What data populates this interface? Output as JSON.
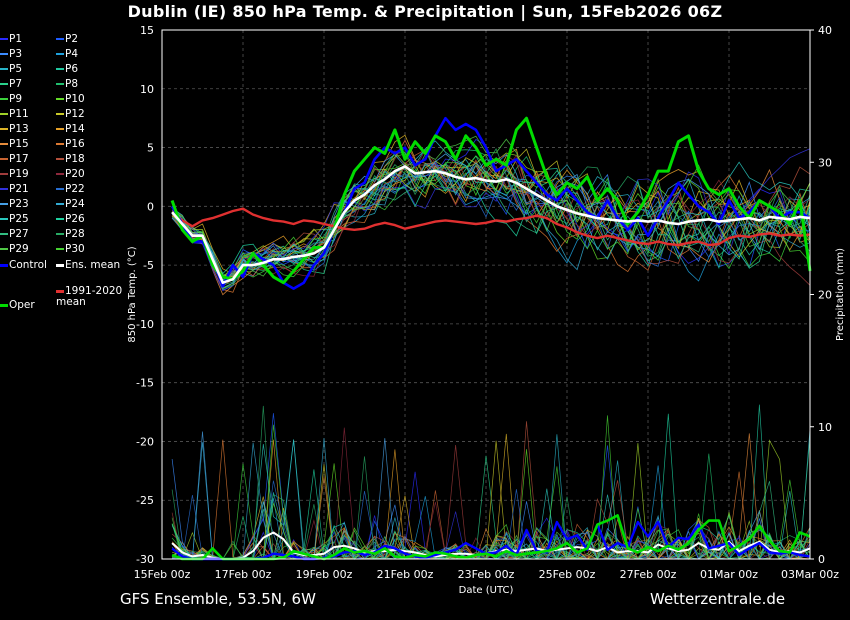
{
  "title": "Dublin  (IE)  850 hPa Temp. & Precipitation | Sun, 15Feb2026 06Z",
  "footer": {
    "model": "GFS Ensemble, 53.5N, 6W",
    "source": "Wetterzentrale.de"
  },
  "legend": {
    "members": [
      {
        "label": "P1",
        "color": "#2a2aff"
      },
      {
        "label": "P2",
        "color": "#1e5cff"
      },
      {
        "label": "P3",
        "color": "#3c8cff"
      },
      {
        "label": "P4",
        "color": "#1ea0dc"
      },
      {
        "label": "P5",
        "color": "#28b4c8"
      },
      {
        "label": "P6",
        "color": "#20c8a0"
      },
      {
        "label": "P7",
        "color": "#2ad28c"
      },
      {
        "label": "P8",
        "color": "#20be6e"
      },
      {
        "label": "P9",
        "color": "#3cd23c"
      },
      {
        "label": "P10",
        "color": "#64dc28"
      },
      {
        "label": "P11",
        "color": "#a0d228"
      },
      {
        "label": "P12",
        "color": "#c8c828"
      },
      {
        "label": "P13",
        "color": "#dcb428"
      },
      {
        "label": "P14",
        "color": "#e6a028"
      },
      {
        "label": "P15",
        "color": "#e68c3c"
      },
      {
        "label": "P16",
        "color": "#dc7832"
      },
      {
        "label": "P17",
        "color": "#c86432"
      },
      {
        "label": "P18",
        "color": "#b4503c"
      },
      {
        "label": "P19",
        "color": "#a03c3c"
      },
      {
        "label": "P20",
        "color": "#8c283c"
      },
      {
        "label": "P21",
        "color": "#3232dc"
      },
      {
        "label": "P22",
        "color": "#286ed2"
      },
      {
        "label": "P23",
        "color": "#46a0e6"
      },
      {
        "label": "P24",
        "color": "#32aad2"
      },
      {
        "label": "P25",
        "color": "#2ac8be"
      },
      {
        "label": "P26",
        "color": "#1ed2a0"
      },
      {
        "label": "P27",
        "color": "#32be82"
      },
      {
        "label": "P28",
        "color": "#28aa64"
      },
      {
        "label": "P29",
        "color": "#50c846"
      },
      {
        "label": "P30",
        "color": "#46d232"
      }
    ],
    "control": {
      "label": "Control",
      "color": "#0000ff"
    },
    "ens_mean": {
      "label": "Ens. mean",
      "color": "#ffffff"
    },
    "climate": {
      "label": "1991-2020 mean",
      "color": "#e03030"
    },
    "oper": {
      "label": "Oper",
      "color": "#00dc00"
    }
  },
  "chart_data": {
    "type": "line",
    "xlabel": "Date (UTC)",
    "ylabel": "850 hPa Temp. (°C)",
    "y2label": "Precipitation (mm)",
    "ylim": [
      -30,
      15
    ],
    "y2lim": [
      0,
      40
    ],
    "yticks": [
      15,
      10,
      5,
      0,
      -5,
      -10,
      -15,
      -20,
      -25,
      -30
    ],
    "y2ticks": [
      40,
      30,
      20,
      10,
      0
    ],
    "xlim_days": [
      0,
      16
    ],
    "xticks": [
      {
        "day": 0,
        "label": "15Feb 00z"
      },
      {
        "day": 2,
        "label": "17Feb 00z"
      },
      {
        "day": 4,
        "label": "19Feb 00z"
      },
      {
        "day": 6,
        "label": "21Feb 00z"
      },
      {
        "day": 8,
        "label": "23Feb 00z"
      },
      {
        "day": 10,
        "label": "25Feb 00z"
      },
      {
        "day": 12,
        "label": "27Feb 00z"
      },
      {
        "day": 14,
        "label": "01Mar 00z"
      },
      {
        "day": 16,
        "label": "03Mar 00z"
      }
    ],
    "series_days": [
      0.25,
      0.5,
      0.75,
      1,
      1.25,
      1.5,
      1.75,
      2,
      2.25,
      2.5,
      2.75,
      3,
      3.25,
      3.5,
      3.75,
      4,
      4.25,
      4.5,
      4.75,
      5,
      5.25,
      5.5,
      5.75,
      6,
      6.25,
      6.5,
      6.75,
      7,
      7.25,
      7.5,
      7.75,
      8,
      8.25,
      8.5,
      8.75,
      9,
      9.25,
      9.5,
      9.75,
      10,
      10.25,
      10.5,
      10.75,
      11,
      11.25,
      11.5,
      11.75,
      12,
      12.25,
      12.5,
      12.75,
      13,
      13.25,
      13.5,
      13.75,
      14,
      14.25,
      14.5,
      14.75,
      15,
      15.25,
      15.5,
      15.75,
      16
    ],
    "series": [
      {
        "name": "Ens. mean",
        "axis": "temp",
        "values": [
          -0.5,
          -1.5,
          -2.5,
          -2.5,
          -4.5,
          -6.5,
          -6.2,
          -5,
          -5,
          -4.8,
          -4.5,
          -4.5,
          -4.3,
          -4.2,
          -4,
          -3.5,
          -2,
          -0.5,
          0.5,
          1,
          1.8,
          2.3,
          3,
          3.4,
          2.8,
          2.9,
          3,
          2.8,
          2.5,
          2.3,
          2.4,
          2.2,
          2.1,
          2.3,
          2.0,
          1.5,
          1,
          0.5,
          0,
          -0.3,
          -0.6,
          -0.8,
          -1,
          -1.1,
          -1.2,
          -1.3,
          -1.2,
          -1.3,
          -1.2,
          -1.4,
          -1.5,
          -1.3,
          -1.2,
          -1.1,
          -1.3,
          -1.2,
          -1.1,
          -1,
          -1.2,
          -0.9,
          -1,
          -1.1,
          -0.9,
          -1
        ]
      },
      {
        "name": "Control",
        "axis": "temp",
        "values": [
          0,
          -1.5,
          -3,
          -3,
          -4.5,
          -6.8,
          -5,
          -6,
          -4,
          -4.5,
          -5,
          -6.5,
          -7,
          -6.5,
          -5,
          -4,
          -2,
          -0.5,
          1.5,
          2,
          4,
          5,
          4.5,
          5,
          3.5,
          4,
          6,
          7.5,
          6.5,
          7,
          6.5,
          5,
          3,
          3.5,
          4,
          3,
          2,
          1,
          0.5,
          1.5,
          0.5,
          -0.5,
          -1,
          0.5,
          -1,
          -2,
          -1,
          -2.5,
          -1,
          0.5,
          2,
          1,
          0,
          -0.5,
          -1.5,
          0.5,
          -1,
          -0.5,
          0.5,
          0,
          -1,
          -0.5,
          -0.5,
          -1
        ]
      },
      {
        "name": "Oper",
        "axis": "temp",
        "values": [
          0.5,
          -2,
          -3,
          -2.5,
          -5,
          -6,
          -6.2,
          -5.5,
          -4,
          -5,
          -6,
          -6.5,
          -5.5,
          -4.5,
          -3.5,
          -3.5,
          -2,
          1,
          3,
          4,
          5,
          4.5,
          6.5,
          4,
          5.5,
          4.5,
          6,
          5.5,
          4,
          6,
          5,
          3.5,
          4,
          3.5,
          6.5,
          7.5,
          5,
          2.5,
          1,
          2,
          1.5,
          2.5,
          0.5,
          1.5,
          0.5,
          -1.5,
          -0.5,
          1,
          3,
          3,
          5.5,
          6,
          3,
          1.5,
          1,
          1.5,
          0,
          -1,
          0.5,
          0,
          -0.5,
          -1.5,
          0.5,
          -5.5
        ]
      },
      {
        "name": "1991-2020 mean",
        "axis": "temp",
        "values": [
          -0.5,
          -1.2,
          -1.7,
          -1.2,
          -1,
          -0.7,
          -0.4,
          -0.2,
          -0.7,
          -1,
          -1.2,
          -1.3,
          -1.5,
          -1.2,
          -1.3,
          -1.5,
          -1.7,
          -1.9,
          -2,
          -1.9,
          -1.6,
          -1.4,
          -1.6,
          -1.9,
          -1.7,
          -1.5,
          -1.3,
          -1.2,
          -1.3,
          -1.4,
          -1.5,
          -1.4,
          -1.2,
          -1.3,
          -1.1,
          -1,
          -0.8,
          -1,
          -1.5,
          -1.8,
          -2.2,
          -2.5,
          -2.7,
          -2.5,
          -2.7,
          -2.9,
          -3.1,
          -3.2,
          -3.0,
          -3.2,
          -3.3,
          -3.1,
          -3.0,
          -3.3,
          -3.2,
          -2.7,
          -2.5,
          -2.6,
          -2.4,
          -2.3,
          -2.5,
          -2.4,
          -2.5,
          -2.4
        ]
      },
      {
        "name": "Ens. mean precip",
        "axis": "precip",
        "values": [
          1.2,
          0.5,
          0.2,
          0.3,
          0.1,
          0,
          0,
          0.1,
          0.6,
          1.6,
          2,
          1.5,
          0.5,
          0.3,
          0.3,
          0.4,
          0.9,
          1.0,
          0.8,
          0.5,
          0.6,
          0.6,
          0.7,
          0.6,
          0.5,
          0.3,
          0.2,
          0.3,
          0.4,
          0.4,
          0.3,
          0.4,
          0.6,
          0.7,
          0.6,
          0.7,
          0.8,
          0.6,
          0.7,
          0.8,
          0.9,
          0.8,
          0.6,
          0.9,
          0.5,
          0.6,
          0.6,
          0.5,
          1.1,
          0.8,
          0.6,
          0.7,
          1.2,
          0.8,
          0.7,
          1.3,
          0.6,
          1.0,
          1.3,
          0.7,
          0.5,
          0.6,
          0.5,
          0.8
        ]
      },
      {
        "name": "Control precip",
        "axis": "precip",
        "values": [
          0.8,
          0.2,
          0,
          0,
          0,
          0,
          0,
          0,
          0,
          0.1,
          0.4,
          0.3,
          0.2,
          0,
          0,
          0.1,
          0.2,
          0.5,
          0.6,
          0.3,
          0.5,
          1,
          0.8,
          0.4,
          0.2,
          0.1,
          0.3,
          0.5,
          0.7,
          1.2,
          0.8,
          0.4,
          0.5,
          1.0,
          0.3,
          2.2,
          0.6,
          0.5,
          2.8,
          1.5,
          1.8,
          0.7,
          2.6,
          0.7,
          1.2,
          0.9,
          2.8,
          1.7,
          2.8,
          0.9,
          1.6,
          1.5,
          2.6,
          0.8,
          1.0,
          1.2,
          0.3,
          0.8,
          1.2,
          0.5,
          0.4,
          0.5,
          0.3,
          0.2
        ]
      },
      {
        "name": "Oper precip",
        "axis": "precip",
        "values": [
          0.3,
          0,
          0,
          0,
          0.8,
          0,
          0,
          0,
          0,
          0,
          0,
          0.1,
          0.6,
          0.4,
          0.2,
          0,
          0.3,
          0.8,
          0.5,
          0.6,
          0.4,
          0.8,
          0.2,
          0.1,
          0.3,
          0.2,
          0.5,
          0.4,
          0.2,
          0.1,
          0.3,
          0.4,
          0.2,
          0.6,
          0.3,
          0.4,
          0.5,
          0.6,
          0.8,
          1.2,
          0.5,
          0.8,
          2.6,
          2.9,
          3.3,
          0.8,
          0.5,
          0.9,
          0.6,
          1.0,
          0.7,
          1.2,
          2.2,
          2.9,
          2.9,
          0.6,
          1.0,
          1.5,
          2.5,
          1.4,
          0.6,
          0.5,
          2.0,
          1.7
        ]
      }
    ]
  }
}
